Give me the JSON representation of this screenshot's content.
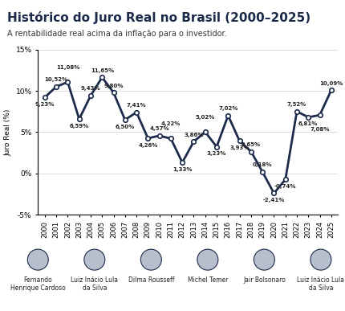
{
  "chart_data": {
    "type": "line",
    "title": "Histórico do Juro Real no Brasil (2000–2025)",
    "subtitle": "A rentabilidade real acima da inflação para o investidor.",
    "y_label": "Juro Real (%)",
    "categories": [
      "2000",
      "2001",
      "2002",
      "2003",
      "2004",
      "2005",
      "2006",
      "2007",
      "2008",
      "2009",
      "2010",
      "2011",
      "2012",
      "2013",
      "2014",
      "2015",
      "2016",
      "2017",
      "2018",
      "2019",
      "2020",
      "2021",
      "2022",
      "2023",
      "2024",
      "2025"
    ],
    "values": [
      9.23,
      10.52,
      11.08,
      6.59,
      9.43,
      11.65,
      9.8,
      6.5,
      7.41,
      4.26,
      4.57,
      4.22,
      1.33,
      3.86,
      5.02,
      3.23,
      7.02,
      3.93,
      2.65,
      0.18,
      -2.41,
      -0.74,
      7.52,
      6.81,
      7.08,
      10.09
    ],
    "value_labels": [
      "9,23%",
      "10,52%",
      "11,08%",
      "6,59%",
      "9,43%",
      "11,65%",
      "9,80%",
      "6,50%",
      "7,41%",
      "4,26%",
      "4,57%",
      "4,22%",
      "1,33%",
      "3,86%",
      "5,02%",
      "3,23%",
      "7,02%",
      "3,93%",
      "2,65%",
      "0,18%",
      "-2,41%",
      "-0,74%",
      "7,52%",
      "6,81%",
      "7,08%",
      "10,09%"
    ],
    "color": "#1c2b4a",
    "marker": "o",
    "line_style": "solid",
    "ylim": [
      -5,
      15
    ],
    "yticks": [
      {
        "value": -5,
        "label": "-5%"
      },
      {
        "value": 0,
        "label": "0%"
      },
      {
        "value": 5,
        "label": "5%"
      },
      {
        "value": 10,
        "label": "10%"
      },
      {
        "value": 15,
        "label": "15%"
      }
    ],
    "grid": true,
    "data_labels": true,
    "annotations": [
      "Fernando Henrique Cardoso",
      "Luiz Inácio Lula da Silva",
      "Dilma Rousseff",
      "Michel Temer",
      "Jair Bolsonaro",
      "Luiz Inácio Lula da Silva"
    ]
  }
}
